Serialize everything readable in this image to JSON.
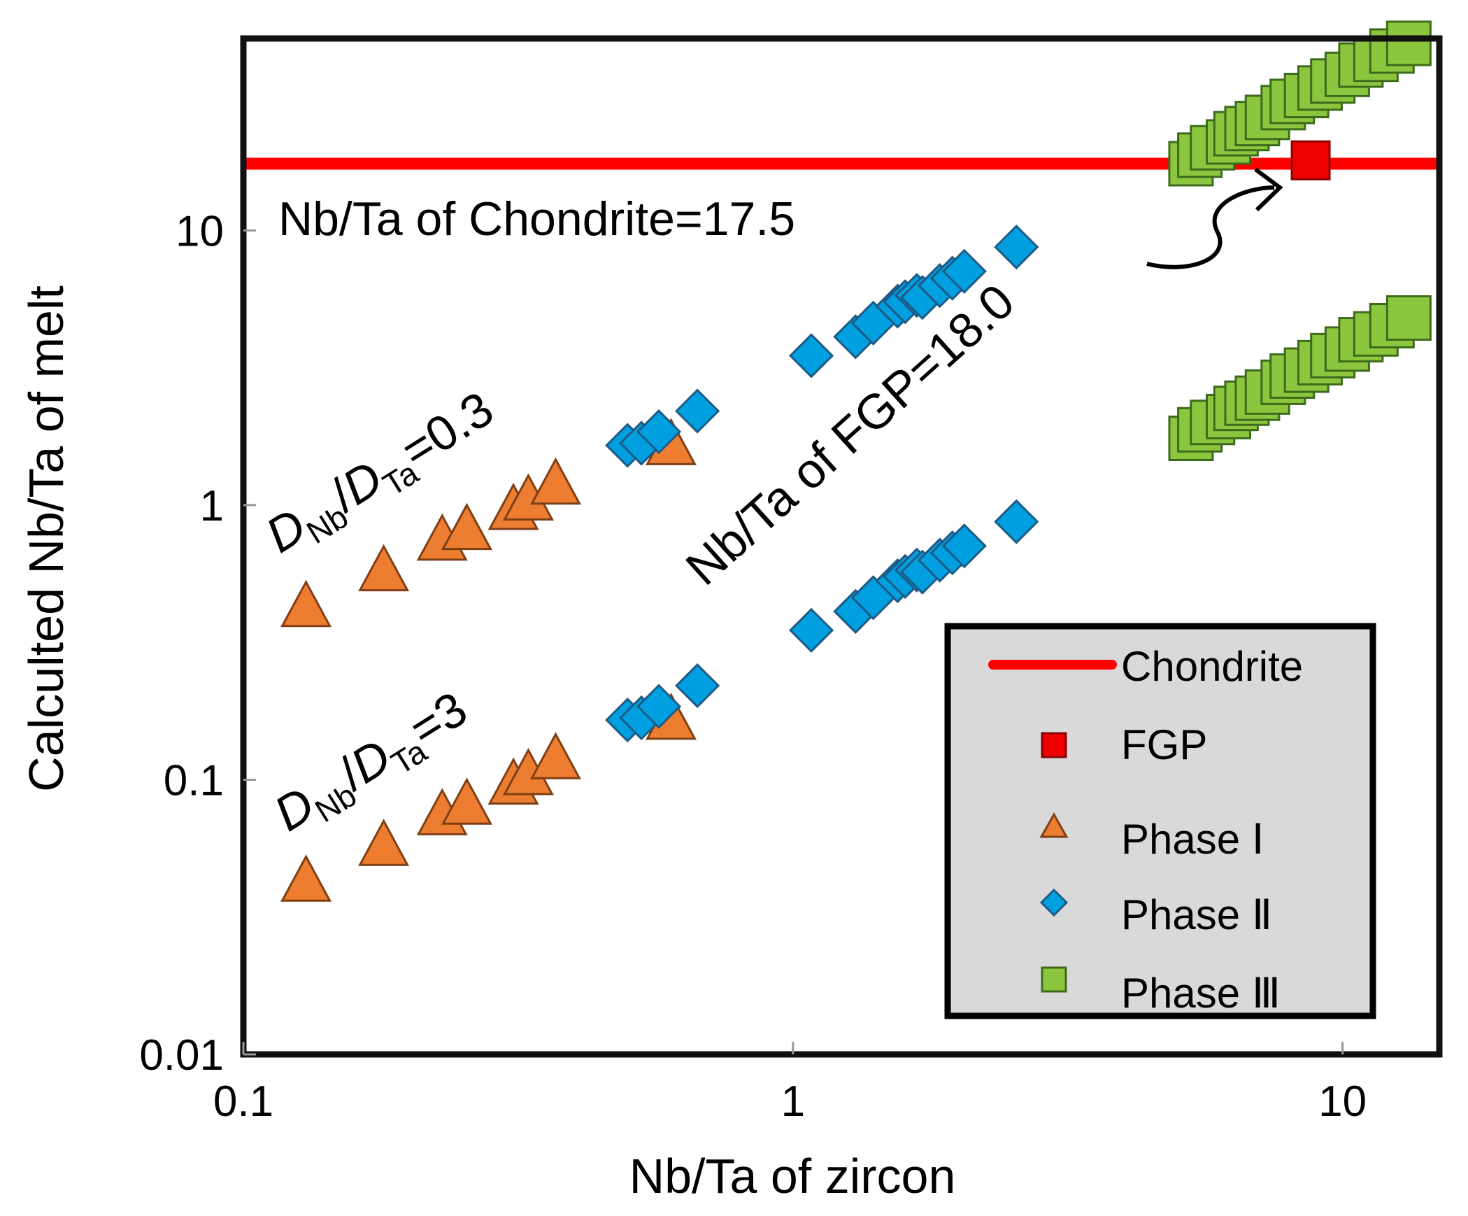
{
  "chart_data": {
    "type": "scatter",
    "xlabel": "Nb/Ta of zircon",
    "ylabel": "Calculted Nb/Ta of melt",
    "x_scale": "log",
    "y_scale": "log",
    "xlim": [
      0.1,
      15
    ],
    "ylim": [
      0.01,
      50
    ],
    "x_ticks": [
      "0.1",
      "1",
      "10"
    ],
    "y_ticks": [
      "0.01",
      "0.1",
      "1",
      "10"
    ],
    "grid": false,
    "legend_position": "bottom-right",
    "legend": [
      {
        "label": "Chondrite",
        "marker": "line",
        "color": "#ff0000"
      },
      {
        "label": "FGP",
        "marker": "square",
        "color": "#ee0000"
      },
      {
        "label": "Phase Ⅰ",
        "marker": "triangle",
        "color": "#ed7d31"
      },
      {
        "label": "Phase Ⅱ",
        "marker": "diamond",
        "color": "#00a0e0"
      },
      {
        "label": "Phase Ⅲ",
        "marker": "square",
        "color": "#8cc63f"
      }
    ],
    "reference_line": {
      "name": "Chondrite",
      "y": 17.5,
      "label": "Nb/Ta of Chondrite=17.5"
    },
    "series": [
      {
        "name": "Phase Ⅰ",
        "group": "DNb/DTa=0.3",
        "marker": "triangle",
        "color": "#ed7d31",
        "points": [
          [
            0.13,
            0.43
          ],
          [
            0.18,
            0.58
          ],
          [
            0.23,
            0.75
          ],
          [
            0.255,
            0.82
          ],
          [
            0.31,
            0.97
          ],
          [
            0.33,
            1.05
          ],
          [
            0.37,
            1.2
          ],
          [
            0.6,
            1.67
          ]
        ]
      },
      {
        "name": "Phase Ⅱ",
        "group": "DNb/DTa=0.3",
        "marker": "diamond",
        "color": "#00a0e0",
        "points": [
          [
            0.5,
            1.65
          ],
          [
            0.53,
            1.68
          ],
          [
            0.57,
            1.85
          ],
          [
            0.67,
            2.2
          ],
          [
            1.08,
            3.5
          ],
          [
            1.3,
            4.1
          ],
          [
            1.4,
            4.6
          ],
          [
            1.55,
            5.3
          ],
          [
            1.6,
            5.5
          ],
          [
            1.68,
            5.8
          ],
          [
            1.72,
            5.7
          ],
          [
            1.85,
            6.3
          ],
          [
            1.95,
            6.7
          ],
          [
            2.05,
            7.1
          ],
          [
            2.55,
            8.7
          ]
        ]
      },
      {
        "name": "Phase Ⅲ",
        "group": "DNb/DTa=0.3",
        "marker": "square",
        "color": "#8cc63f",
        "points": [
          [
            5.3,
            17.5
          ],
          [
            5.5,
            18.8
          ],
          [
            5.8,
            20
          ],
          [
            6.2,
            21
          ],
          [
            6.4,
            22.5
          ],
          [
            6.7,
            23.5
          ],
          [
            7.0,
            24.5
          ],
          [
            7.3,
            25.8
          ],
          [
            7.8,
            28
          ],
          [
            8.1,
            29.5
          ],
          [
            8.6,
            31
          ],
          [
            9.1,
            33
          ],
          [
            9.6,
            35
          ],
          [
            10.2,
            37
          ],
          [
            10.8,
            40
          ],
          [
            11.5,
            42
          ],
          [
            12.3,
            45
          ],
          [
            13.2,
            48
          ]
        ]
      },
      {
        "name": "Phase Ⅰ",
        "group": "DNb/DTa=3",
        "marker": "triangle",
        "color": "#ed7d31",
        "points": [
          [
            0.13,
            0.043
          ],
          [
            0.18,
            0.058
          ],
          [
            0.23,
            0.075
          ],
          [
            0.255,
            0.082
          ],
          [
            0.31,
            0.097
          ],
          [
            0.33,
            0.105
          ],
          [
            0.37,
            0.12
          ],
          [
            0.6,
            0.167
          ]
        ]
      },
      {
        "name": "Phase Ⅱ",
        "group": "DNb/DTa=3",
        "marker": "diamond",
        "color": "#00a0e0",
        "points": [
          [
            0.5,
            0.165
          ],
          [
            0.53,
            0.168
          ],
          [
            0.57,
            0.185
          ],
          [
            0.67,
            0.22
          ],
          [
            1.08,
            0.35
          ],
          [
            1.3,
            0.41
          ],
          [
            1.4,
            0.46
          ],
          [
            1.55,
            0.53
          ],
          [
            1.6,
            0.55
          ],
          [
            1.68,
            0.58
          ],
          [
            1.72,
            0.57
          ],
          [
            1.85,
            0.63
          ],
          [
            1.95,
            0.67
          ],
          [
            2.05,
            0.71
          ],
          [
            2.55,
            0.87
          ]
        ]
      },
      {
        "name": "Phase Ⅲ",
        "group": "DNb/DTa=3",
        "marker": "square",
        "color": "#8cc63f",
        "points": [
          [
            5.3,
            1.75
          ],
          [
            5.5,
            1.88
          ],
          [
            5.8,
            2.0
          ],
          [
            6.2,
            2.1
          ],
          [
            6.4,
            2.25
          ],
          [
            6.7,
            2.35
          ],
          [
            7.0,
            2.45
          ],
          [
            7.3,
            2.58
          ],
          [
            7.8,
            2.8
          ],
          [
            8.1,
            2.95
          ],
          [
            8.6,
            3.1
          ],
          [
            9.1,
            3.3
          ],
          [
            9.6,
            3.5
          ],
          [
            10.2,
            3.7
          ],
          [
            10.8,
            4.0
          ],
          [
            11.5,
            4.2
          ],
          [
            12.3,
            4.5
          ],
          [
            13.2,
            4.8
          ]
        ]
      },
      {
        "name": "FGP",
        "marker": "square",
        "color": "#ee0000",
        "points": [
          [
            8.75,
            18.0
          ]
        ]
      }
    ],
    "annotations": [
      {
        "text": "Nb/Ta of FGP=18.0",
        "arrow_target": "FGP"
      },
      {
        "label": "D",
        "sub": "Nb",
        "sep": "/",
        "label2": "D",
        "sub2": "Ta",
        "suffix": "=0.3"
      },
      {
        "label": "D",
        "sub": "Nb",
        "sep": "/",
        "label2": "D",
        "sub2": "Ta",
        "suffix": "=3"
      }
    ]
  }
}
